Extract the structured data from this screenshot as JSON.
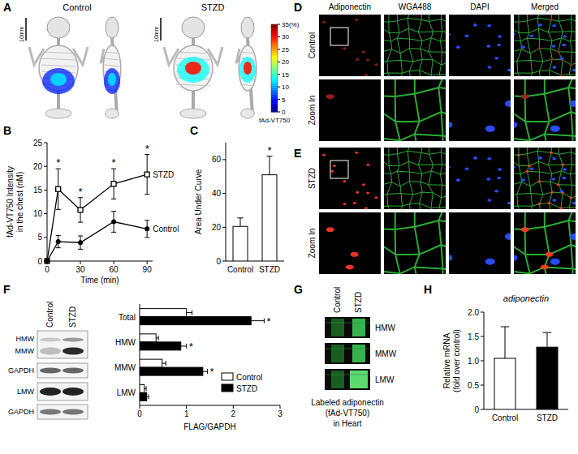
{
  "panel_A": {
    "panel": "A",
    "groups": [
      "Control",
      "STZD"
    ],
    "scale_bar": "10mm",
    "chest_signal": [
      12,
      30
    ],
    "colorbar": {
      "label": "fAd-VT750",
      "range": [
        0,
        35
      ],
      "ticks": [
        {
          "value": 35,
          "label": "35(%)"
        },
        30,
        25,
        20,
        15,
        10,
        5,
        0
      ]
    }
  },
  "panel_D": {
    "panel": "D",
    "columns": [
      "Adiponectin",
      "WGA488",
      "DAPI",
      "Merged"
    ],
    "rows": [
      "Control",
      "Zoom In"
    ]
  },
  "panel_E": {
    "panel": "E",
    "rows": [
      "STZD",
      "Zoom In"
    ]
  },
  "panel_F_blot": {
    "lanes": [
      "Control",
      "STZD"
    ],
    "rows": [
      "HMW",
      "MMW",
      "GAPDH",
      "LMW",
      "GAPDH"
    ]
  },
  "panel_G": {
    "panel": "G",
    "lanes": [
      "Control",
      "STZD"
    ],
    "bands": [
      "HMW",
      "MMW",
      "LMW"
    ],
    "caption": [
      "Labeled adiponectin",
      "(fAd-VT750)",
      "in Heart"
    ]
  },
  "chart_data": [
    {
      "panel": "B",
      "type": "line",
      "x": [
        0,
        10,
        30,
        60,
        90
      ],
      "xlim": [
        0,
        95
      ],
      "xticks": [
        0,
        30,
        60,
        90
      ],
      "ylim": [
        0,
        25
      ],
      "yticks": [
        0,
        5,
        10,
        15,
        20,
        25
      ],
      "xlabel": "Time (min)",
      "ylabel": [
        "fAd-VT750 Intensity",
        "in the chest (nM)"
      ],
      "series": [
        {
          "name": "STZD",
          "color": "#000000",
          "marker": "square-open",
          "values": [
            0,
            15.2,
            10.8,
            16.3,
            18.3
          ],
          "errors": [
            0,
            4.3,
            2.6,
            3.2,
            4.2
          ],
          "significance": [
            null,
            "*",
            "*",
            "*",
            "*"
          ]
        },
        {
          "name": "Control",
          "color": "#000000",
          "marker": "circle",
          "values": [
            0,
            4.1,
            3.9,
            8.3,
            6.8
          ],
          "errors": [
            0,
            1.3,
            1.4,
            2.2,
            1.8
          ]
        }
      ]
    },
    {
      "panel": "C",
      "type": "bar",
      "categories": [
        "Control",
        "STZD"
      ],
      "values": [
        20.5,
        51
      ],
      "errors": [
        5,
        11
      ],
      "significance": [
        null,
        "*"
      ],
      "color": "#ffffff",
      "ylim": [
        0,
        70
      ],
      "yticks": [
        0,
        20,
        40,
        60
      ],
      "ylabel": "Area Under Curve"
    },
    {
      "panel": "F",
      "type": "bar",
      "orientation": "horizontal",
      "categories": [
        "Total",
        "HMW",
        "MMW",
        "LMW"
      ],
      "series": [
        {
          "name": "Control",
          "color": "#ffffff",
          "values": [
            1.0,
            0.35,
            0.48,
            0.1
          ],
          "errors": [
            0.12,
            0.05,
            0.08,
            0.04
          ]
        },
        {
          "name": "STZD",
          "color": "#000000",
          "values": [
            2.38,
            0.88,
            1.35,
            0.15
          ],
          "errors": [
            0.28,
            0.12,
            0.1,
            0.04
          ],
          "significance": [
            "*",
            "*",
            "*",
            null
          ]
        }
      ],
      "xlim": [
        0,
        3
      ],
      "xticks": [
        0,
        1,
        2,
        3
      ],
      "xlabel": "FLAG/GAPDH",
      "legend": "lower right"
    },
    {
      "panel": "H",
      "type": "bar",
      "title": "adiponectin",
      "categories": [
        "Control",
        "STZD"
      ],
      "values": [
        1.05,
        1.28
      ],
      "errors": [
        0.65,
        0.3
      ],
      "colors": [
        "#ffffff",
        "#000000"
      ],
      "ylim": [
        0,
        2
      ],
      "yticks": [
        0,
        0.5,
        {
          "value": 1,
          "label": "1.0"
        },
        1.5,
        {
          "value": 2,
          "label": "2.0"
        }
      ],
      "ylabel": [
        "Relative mRNA",
        "(fold over control)"
      ]
    }
  ]
}
